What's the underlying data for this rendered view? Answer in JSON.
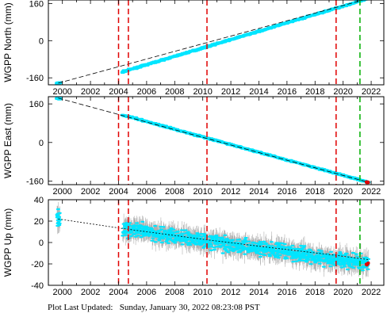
{
  "footer": {
    "label": "Plot Last Updated:",
    "timestamp": "Sunday, January 30, 2022 08:23:08 PST"
  },
  "colors": {
    "data": "#00e5ff",
    "error_bars": "#b0b0b0",
    "model": "#000000",
    "offset_line": "#e00000",
    "last_fix_line": "#00b000",
    "latest_points": "#e00000"
  },
  "chart_data": [
    {
      "type": "scatter",
      "ylabel": "WGPP North (mm)",
      "xlim": [
        1999.0,
        2022.9
      ],
      "ylim": [
        -190,
        175
      ],
      "x_ticks": [
        2000,
        2002,
        2004,
        2006,
        2008,
        2010,
        2012,
        2014,
        2016,
        2018,
        2020,
        2022
      ],
      "y_ticks": [
        -160,
        0,
        160
      ],
      "error_bars": false,
      "series": [
        {
          "kind": "observations",
          "x": [
            1999.7,
            2004.3,
            2021.8
          ],
          "y": [
            -183,
            -134,
            181
          ]
        },
        {
          "kind": "model",
          "x": [
            1999.7,
            2021.8
          ],
          "y": [
            -183,
            181
          ]
        }
      ],
      "vlines_red": [
        2004.0,
        2004.7,
        2010.3,
        2019.5
      ],
      "vlines_green": [
        2021.2
      ]
    },
    {
      "type": "scatter",
      "ylabel": "WGPP East (mm)",
      "xlim": [
        1999.0,
        2022.9
      ],
      "ylim": [
        -175,
        190
      ],
      "x_ticks": [
        2000,
        2002,
        2004,
        2006,
        2008,
        2010,
        2012,
        2014,
        2016,
        2018,
        2020,
        2022
      ],
      "y_ticks": [
        -160,
        0,
        160
      ],
      "error_bars": false,
      "series": [
        {
          "kind": "observations",
          "x": [
            1999.7,
            2004.3,
            2021.8
          ],
          "y": [
            184,
            114,
            -165
          ]
        },
        {
          "kind": "model",
          "x": [
            1999.7,
            2021.8
          ],
          "y": [
            184,
            -165
          ]
        }
      ],
      "vlines_red": [
        2004.0,
        2004.7,
        2010.3,
        2019.5
      ],
      "vlines_green": [
        2021.2
      ]
    },
    {
      "type": "scatter",
      "ylabel": "WGPP Up (mm)",
      "xlim": [
        1999.0,
        2022.9
      ],
      "ylim": [
        -40,
        40
      ],
      "x_ticks": [
        2000,
        2002,
        2004,
        2006,
        2008,
        2010,
        2012,
        2014,
        2016,
        2018,
        2020,
        2022
      ],
      "y_ticks": [
        -40,
        -20,
        0,
        20,
        40
      ],
      "error_bars": true,
      "series": [
        {
          "kind": "observations",
          "x": [
            1999.7,
            2004.3,
            2021.8
          ],
          "y": [
            22,
            13,
            -20
          ],
          "scatter": 5,
          "error": 7
        },
        {
          "kind": "model",
          "x": [
            1999.7,
            2004.3,
            2010.0,
            2015.0,
            2019.5,
            2021.8
          ],
          "y": [
            22,
            13,
            3,
            -5,
            -12,
            -16
          ]
        }
      ],
      "vlines_red": [
        2004.0,
        2004.7,
        2010.3,
        2019.5
      ],
      "vlines_green": [
        2021.2
      ]
    }
  ]
}
